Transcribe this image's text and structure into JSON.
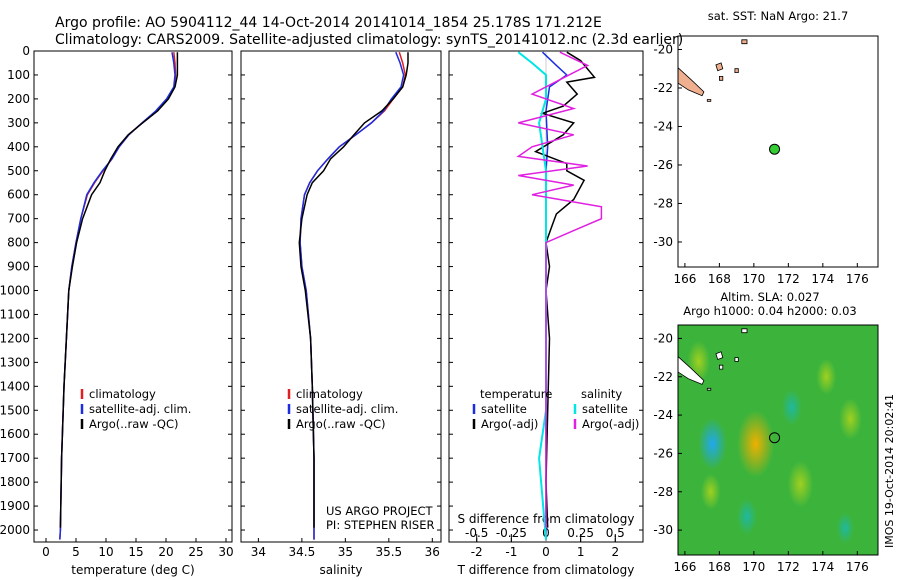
{
  "header": {
    "line1": "Argo profile: AO 5904112_44 14-Oct-2014 20141014_1854 25.178S 171.212E",
    "line2": "Climatology: CARS2009. Satellite-adjusted climatology: synTS_20141012.nc (2.3d earlier)"
  },
  "colors": {
    "climatology": "#e02020",
    "satellite": "#1a2ee0",
    "argo": "#000000",
    "sat_S": "#00e5e5",
    "argo_S": "#e020e0",
    "land": "#f0b090",
    "sla_bg": "#3cb43c",
    "float_marker": "#33cc33"
  },
  "credit": "IMOS 19-Oct-2014 20:02:41",
  "chart_data": [
    {
      "type": "line",
      "name": "temperature",
      "xlabel": "temperature (deg C)",
      "xticks": [
        "0",
        "5",
        "10",
        "15",
        "20",
        "25",
        "30"
      ],
      "xlim": [
        -2,
        31
      ],
      "ylim": [
        0,
        2050
      ],
      "yticks": [
        "0",
        "100",
        "200",
        "300",
        "400",
        "500",
        "600",
        "700",
        "800",
        "900",
        "1000",
        "1100",
        "1200",
        "1300",
        "1400",
        "1500",
        "1600",
        "1700",
        "1800",
        "1900",
        "2000"
      ],
      "legend": [
        "climatology",
        "satellite-adj. clim.",
        "Argo(..raw -QC)"
      ],
      "series": [
        {
          "key": "climatology",
          "x": [
            21.3,
            21.5,
            21.6,
            21.4,
            20.2,
            18.4,
            16.0,
            13.8,
            12.2,
            11.0,
            9.5,
            8.1,
            6.9,
            5.8,
            5.0,
            4.3,
            3.8,
            3.4,
            3.0,
            2.6,
            2.4,
            2.3
          ],
          "y": [
            5,
            50,
            100,
            150,
            200,
            250,
            300,
            350,
            400,
            450,
            500,
            550,
            600,
            700,
            800,
            900,
            1000,
            1200,
            1400,
            1700,
            2000,
            2040
          ]
        },
        {
          "key": "satellite",
          "x": [
            21.0,
            21.3,
            21.5,
            21.3,
            20.1,
            18.3,
            16.0,
            13.8,
            12.2,
            11.0,
            9.4,
            8.0,
            6.8,
            5.8,
            5.0,
            4.3,
            3.8,
            3.4,
            3.0,
            2.6,
            2.4,
            2.3
          ],
          "y": [
            5,
            50,
            100,
            150,
            200,
            250,
            300,
            350,
            400,
            450,
            500,
            550,
            600,
            700,
            800,
            900,
            1000,
            1200,
            1400,
            1700,
            2000,
            2040
          ]
        },
        {
          "key": "argo",
          "x": [
            21.9,
            21.9,
            21.9,
            21.5,
            20.4,
            18.6,
            16.1,
            13.7,
            12.0,
            10.8,
            9.8,
            9.0,
            7.6,
            6.1,
            5.1,
            4.4,
            3.8,
            3.4,
            3.0,
            2.6,
            2.4
          ],
          "y": [
            5,
            50,
            100,
            150,
            200,
            250,
            300,
            350,
            400,
            450,
            500,
            550,
            600,
            700,
            800,
            900,
            1000,
            1200,
            1400,
            1700,
            1990
          ]
        }
      ]
    },
    {
      "type": "line",
      "name": "salinity",
      "xlabel": "salinity",
      "xticks": [
        "34",
        "34.5",
        "35",
        "35.5",
        "36"
      ],
      "xlim": [
        33.8,
        36.1
      ],
      "ylim": [
        0,
        2050
      ],
      "legend": [
        "climatology",
        "satellite-adj. clim.",
        "Argo(..raw -QC)"
      ],
      "annotation": [
        "US ARGO PROJECT",
        "PI: STEPHEN RISER"
      ],
      "series": [
        {
          "key": "climatology",
          "x": [
            35.62,
            35.66,
            35.69,
            35.66,
            35.55,
            35.45,
            35.3,
            35.12,
            34.93,
            34.8,
            34.68,
            34.59,
            34.53,
            34.49,
            34.48,
            34.5,
            34.55,
            34.6,
            34.62,
            34.64,
            34.64
          ],
          "y": [
            5,
            50,
            100,
            150,
            200,
            250,
            300,
            350,
            400,
            450,
            500,
            550,
            600,
            700,
            800,
            900,
            1000,
            1200,
            1400,
            1700,
            2040
          ]
        },
        {
          "key": "satellite",
          "x": [
            35.58,
            35.63,
            35.67,
            35.64,
            35.53,
            35.44,
            35.3,
            35.12,
            34.93,
            34.8,
            34.68,
            34.59,
            34.53,
            34.49,
            34.48,
            34.5,
            34.55,
            34.6,
            34.62,
            34.64,
            34.64
          ],
          "y": [
            5,
            50,
            100,
            150,
            200,
            250,
            300,
            350,
            400,
            450,
            500,
            550,
            600,
            700,
            800,
            900,
            1000,
            1200,
            1400,
            1700,
            2040
          ]
        },
        {
          "key": "argo",
          "x": [
            35.72,
            35.72,
            35.7,
            35.66,
            35.55,
            35.42,
            35.22,
            35.1,
            34.98,
            34.83,
            34.75,
            34.62,
            34.56,
            34.5,
            34.47,
            34.49,
            34.54,
            34.6,
            34.62,
            34.64,
            34.64
          ],
          "y": [
            5,
            50,
            100,
            150,
            200,
            250,
            300,
            350,
            400,
            450,
            500,
            550,
            600,
            700,
            800,
            900,
            1000,
            1200,
            1400,
            1700,
            1990
          ]
        }
      ]
    },
    {
      "type": "line",
      "name": "difference",
      "xlabel": "T difference from climatology",
      "xlabel_top": "S difference from climatology",
      "xticks_bottom": [
        "-2",
        "-1",
        "0",
        "1",
        "2"
      ],
      "xticks_top": [
        "-0.5",
        "-0.25",
        "0",
        "0.25",
        "0.5"
      ],
      "xlim": [
        -2.8,
        2.8
      ],
      "ylim": [
        0,
        2050
      ],
      "legend_T": {
        "title": "temperature",
        "items": [
          "satellite",
          "Argo(-adj)"
        ]
      },
      "legend_S": {
        "title": "salinity",
        "items": [
          "satellite",
          "Argo(-adj)"
        ]
      },
      "series": [
        {
          "key": "satellite",
          "x": [
            -0.1,
            0.3,
            0.6,
            0.1,
            0.0,
            0.05,
            0.0,
            0.0,
            0.0,
            0.0,
            0.0,
            0.0,
            0.0
          ],
          "y": [
            5,
            60,
            100,
            150,
            250,
            400,
            500,
            600,
            700,
            800,
            1000,
            1500,
            2040
          ]
        },
        {
          "key": "argo",
          "x": [
            0.6,
            1.0,
            1.4,
            0.6,
            0.9,
            0.5,
            -0.1,
            0.8,
            0.5,
            -0.3,
            0.6,
            0.6,
            1.1,
            0.8,
            0.3,
            0.2,
            0.0,
            0.1,
            0.0,
            0.1,
            0.05,
            0.0,
            0.05
          ],
          "y": [
            5,
            40,
            110,
            130,
            180,
            230,
            260,
            300,
            350,
            420,
            470,
            500,
            540,
            620,
            680,
            720,
            800,
            900,
            1000,
            1200,
            1500,
            1800,
            1990
          ]
        },
        {
          "key": "sat_S",
          "x": [
            -0.2,
            -0.1,
            0.0,
            0.0,
            -0.05,
            0.0,
            0.0,
            0.0,
            0.0,
            0.0,
            0.0,
            -0.05,
            0.0
          ],
          "y": [
            5,
            50,
            100,
            200,
            300,
            500,
            600,
            700,
            800,
            1000,
            1500,
            1700,
            2040
          ]
        },
        {
          "key": "argo_S",
          "x": [
            0.1,
            0.3,
            0.1,
            -0.1,
            0.2,
            -0.2,
            0.2,
            -0.1,
            -0.2,
            0.3,
            -0.2,
            0.2,
            -0.1,
            0.4,
            0.4,
            0.2,
            0.0,
            0.0,
            0.0
          ],
          "y": [
            5,
            60,
            120,
            180,
            240,
            300,
            350,
            400,
            440,
            480,
            520,
            560,
            600,
            650,
            700,
            750,
            800,
            1000,
            1990
          ]
        }
      ]
    },
    {
      "type": "map",
      "name": "sst-map",
      "title": "sat. SST: NaN Argo: 21.7",
      "xticks": [
        "166",
        "168",
        "170",
        "172",
        "174",
        "176"
      ],
      "yticks": [
        "-20",
        "-22",
        "-24",
        "-26",
        "-28",
        "-30"
      ],
      "xlim": [
        165.6,
        177.2
      ],
      "ylim": [
        -31.3,
        -19.3
      ],
      "float": {
        "lon": 171.2,
        "lat": -25.18
      }
    },
    {
      "type": "heatmap",
      "name": "sla-map",
      "title_line1": "Altim. SLA: 0.027",
      "title_line2": "Argo h1000: 0.04 h2000: 0.03",
      "xticks": [
        "166",
        "168",
        "170",
        "172",
        "174",
        "176"
      ],
      "yticks": [
        "-20",
        "-22",
        "-24",
        "-26",
        "-28",
        "-30"
      ],
      "xlim": [
        165.6,
        177.2
      ],
      "ylim": [
        -31.3,
        -19.3
      ],
      "float": {
        "lon": 171.2,
        "lat": -25.18
      },
      "anomalies": [
        {
          "lon": 170.1,
          "lat": -25.5,
          "v": 0.09
        },
        {
          "lon": 167.6,
          "lat": -25.5,
          "v": -0.06
        },
        {
          "lon": 172.2,
          "lat": -23.6,
          "v": -0.03
        },
        {
          "lon": 172.7,
          "lat": -27.6,
          "v": 0.05
        },
        {
          "lon": 175.6,
          "lat": -24.2,
          "v": 0.04
        },
        {
          "lon": 166.8,
          "lat": -21.2,
          "v": 0.04
        },
        {
          "lon": 169.6,
          "lat": -29.3,
          "v": -0.03
        },
        {
          "lon": 174.2,
          "lat": -22.0,
          "v": 0.03
        },
        {
          "lon": 167.5,
          "lat": -28.0,
          "v": 0.03
        },
        {
          "lon": 175.3,
          "lat": -29.9,
          "v": -0.02
        }
      ]
    }
  ]
}
